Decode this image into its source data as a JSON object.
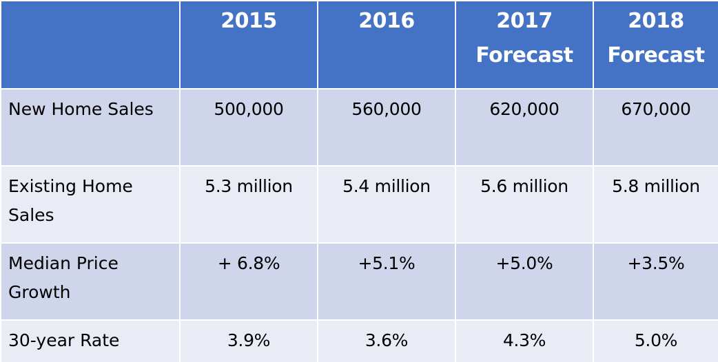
{
  "header": {
    "corner": "",
    "years": [
      {
        "line1": "2015",
        "line2": ""
      },
      {
        "line1": "2016",
        "line2": ""
      },
      {
        "line1": "2017",
        "line2": "Forecast"
      },
      {
        "line1": "2018",
        "line2": "Forecast"
      }
    ]
  },
  "rows": [
    {
      "label": "New Home Sales",
      "values": [
        "500,000",
        "560,000",
        "620,000",
        "670,000"
      ]
    },
    {
      "label": "Existing Home Sales",
      "values": [
        "5.3 million",
        "5.4 million",
        "5.6 million",
        "5.8 million"
      ]
    },
    {
      "label": "Median Price Growth",
      "values": [
        "+ 6.8%",
        "+5.1%",
        "+5.0%",
        "+3.5%"
      ]
    },
    {
      "label": "30-year Rate",
      "values": [
        "3.9%",
        "3.6%",
        "4.3%",
        "5.0%"
      ]
    }
  ],
  "colors": {
    "header_bg": "#4472c4",
    "row_dark": "#cfd5ea",
    "row_light": "#e9ebf5"
  }
}
